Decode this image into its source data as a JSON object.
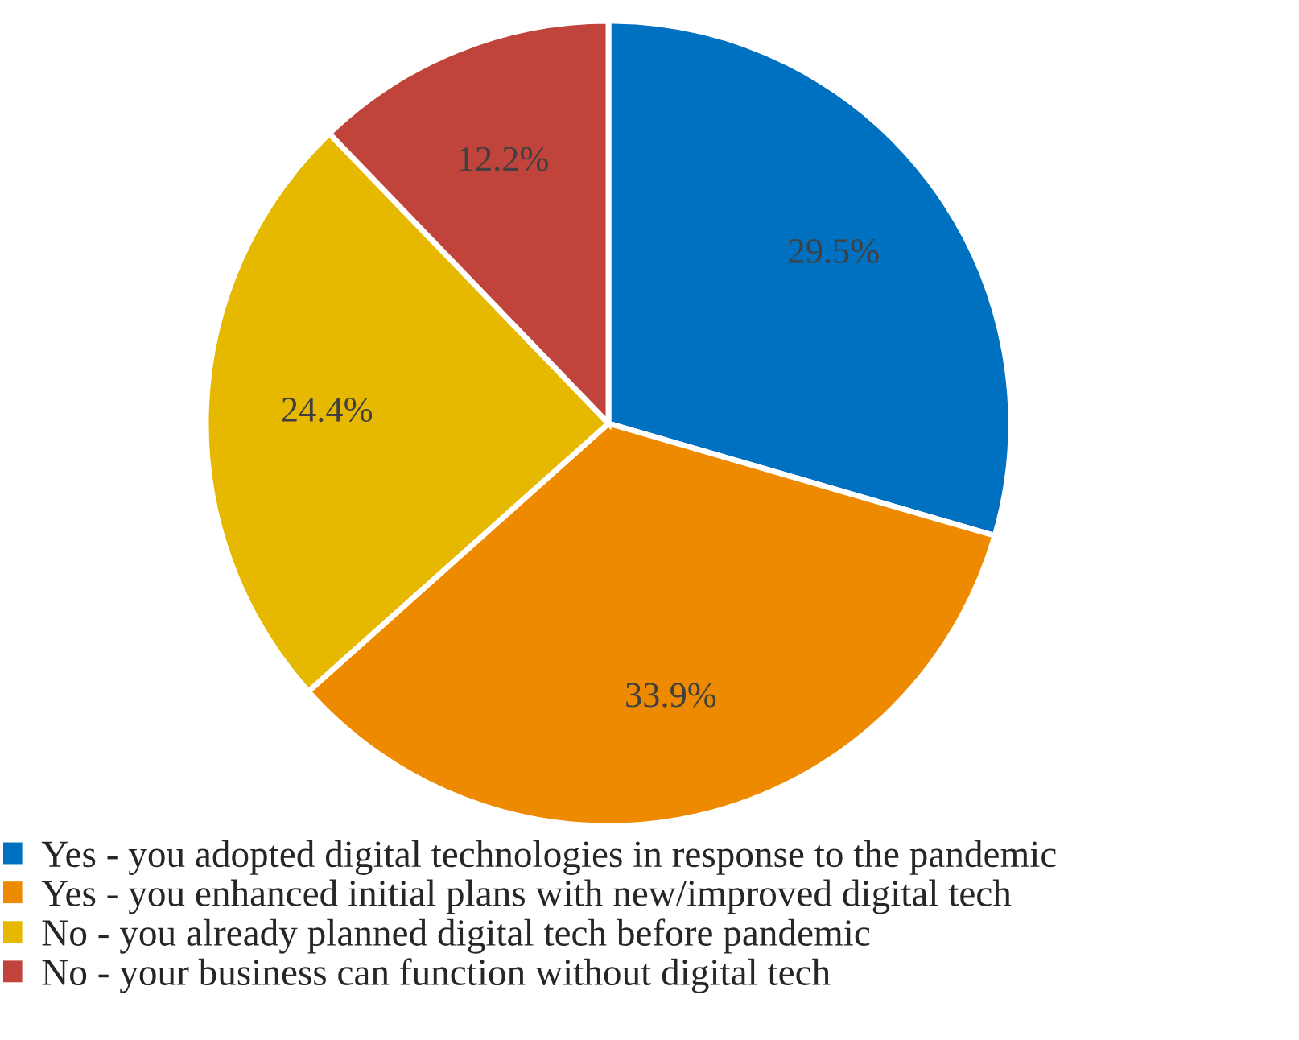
{
  "chart_data": {
    "type": "pie",
    "categories": [
      "Yes - you adopted digital technologies in response to the pandemic",
      "Yes - you enhanced initial plans with new/improved digital tech",
      "No - you already planned digital tech before pandemic",
      "No - your business can function without digital tech"
    ],
    "values": [
      29.5,
      33.9,
      24.4,
      12.2
    ],
    "colors": [
      "#0070c0",
      "#ee8a00",
      "#e6b800",
      "#c0443c"
    ],
    "value_labels": [
      "29.5%",
      "33.9%",
      "24.4%",
      "12.2%"
    ],
    "legend": "bottom"
  }
}
